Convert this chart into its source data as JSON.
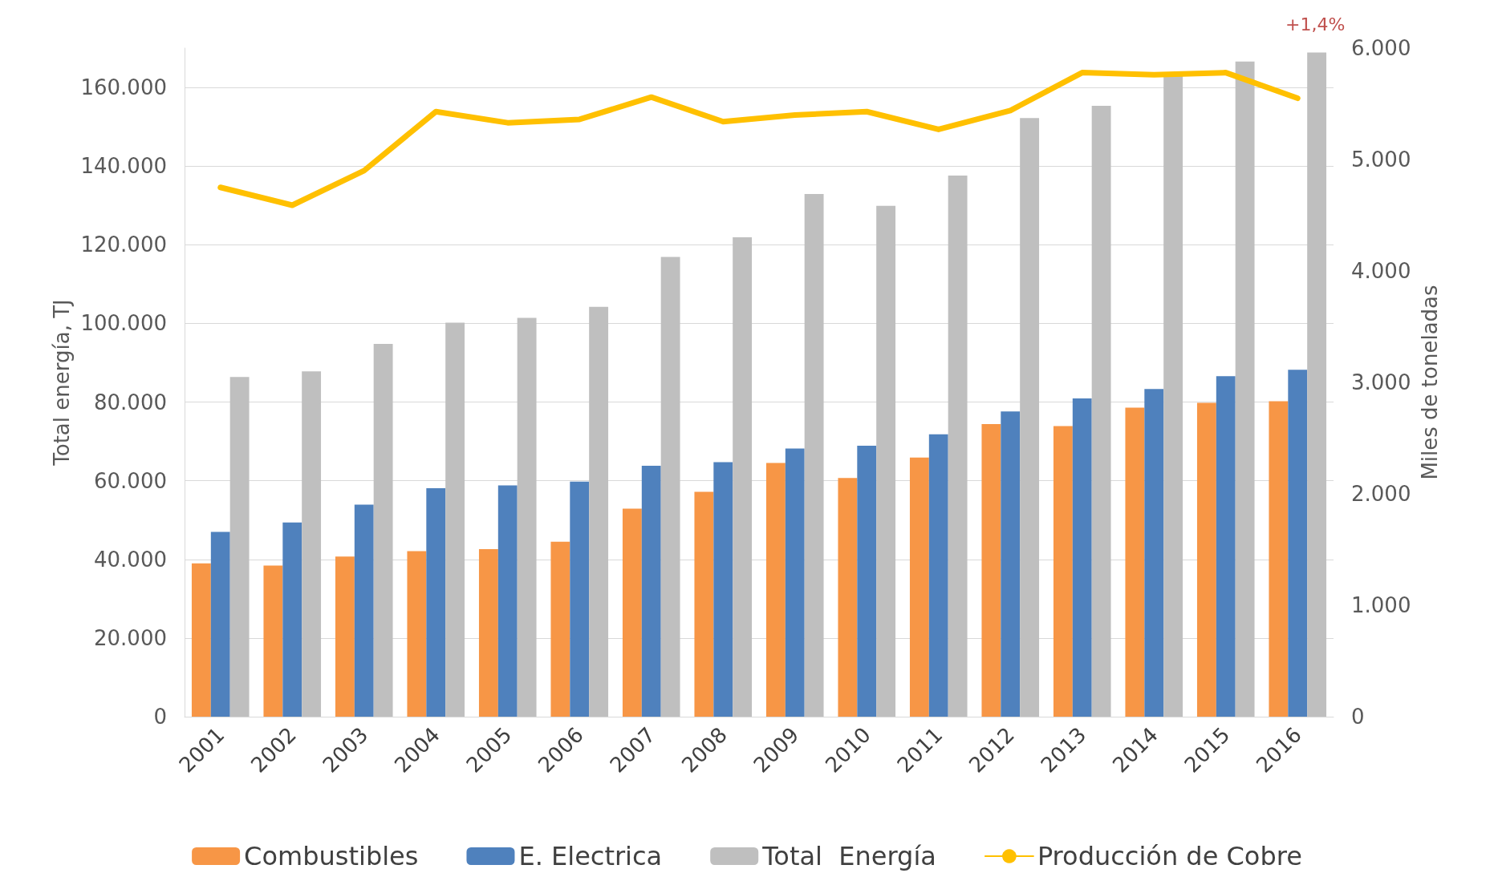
{
  "chart_data": {
    "type": "bar",
    "ylabel": "Total energía, TJ",
    "y2label": "Miles de toneladas",
    "categories": [
      "2001",
      "2002",
      "2003",
      "2004",
      "2005",
      "2006",
      "2007",
      "2008",
      "2009",
      "2010",
      "2011",
      "2012",
      "2013",
      "2014",
      "2015",
      "2016"
    ],
    "series": [
      {
        "name": "Combustibles",
        "color": "#f79646",
        "values": [
          39000,
          38400,
          40700,
          42100,
          42600,
          44500,
          52900,
          57200,
          64500,
          60700,
          65900,
          74400,
          73900,
          78600,
          79800,
          80200
        ]
      },
      {
        "name": "E. Electrica",
        "color": "#4f81bd",
        "values": [
          47000,
          49400,
          53900,
          58100,
          58800,
          59800,
          63800,
          64700,
          68200,
          68900,
          71800,
          77600,
          80900,
          83300,
          86600,
          88200
        ]
      },
      {
        "name": "Total  Energía",
        "color": "#bfbfbf",
        "values": [
          86400,
          87800,
          94800,
          100200,
          101400,
          104200,
          116900,
          121900,
          132900,
          129900,
          137600,
          152200,
          155300,
          163000,
          166600,
          168900
        ]
      },
      {
        "name": "Producción de Cobre",
        "type": "line",
        "axis": "y2",
        "color": "#ffc000",
        "values": [
          4750,
          4590,
          4900,
          5430,
          5330,
          5360,
          5560,
          5340,
          5400,
          5430,
          5270,
          5440,
          5780,
          5760,
          5780,
          5550
        ]
      }
    ],
    "ylim": [
      0,
      170000
    ],
    "yticks": [
      {
        "value": 0,
        "label": "0"
      },
      {
        "value": 20000,
        "label": "20.000"
      },
      {
        "value": 40000,
        "label": "40.000"
      },
      {
        "value": 60000,
        "label": "60.000"
      },
      {
        "value": 80000,
        "label": "80.000"
      },
      {
        "value": 100000,
        "label": "100.000"
      },
      {
        "value": 120000,
        "label": "120.000"
      },
      {
        "value": 140000,
        "label": "140.000"
      },
      {
        "value": 160000,
        "label": "160.000"
      }
    ],
    "y2lim": [
      0,
      6000
    ],
    "y2ticks": [
      {
        "value": 0,
        "label": "0"
      },
      {
        "value": 1000,
        "label": "1.000"
      },
      {
        "value": 2000,
        "label": "2.000"
      },
      {
        "value": 3000,
        "label": "3.000"
      },
      {
        "value": 4000,
        "label": "4.000"
      },
      {
        "value": 5000,
        "label": "5.000"
      },
      {
        "value": 6000,
        "label": "6.000"
      }
    ],
    "annotations": [
      "+1,4%"
    ],
    "grid": "y",
    "legend": "bottom",
    "marker": "none",
    "line_style": "solid"
  }
}
